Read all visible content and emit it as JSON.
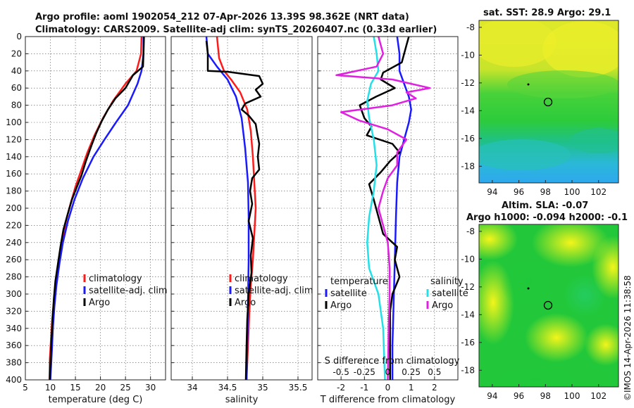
{
  "header": {
    "title1": "Argo profile: aoml 1902054_212 07-Apr-2026 13.39S 98.362E (NRT data)",
    "title2": "Climatology: CARS2009. Satellite-adj clim: synTS_20260407.nc (0.33d earlier)"
  },
  "colors": {
    "climatology": "#ff1a1a",
    "satellite": "#1a1aff",
    "argo": "#000000",
    "sal_sat": "#22e0e8",
    "sal_diff": "#e020e0"
  },
  "chart_data": [
    {
      "id": "temperature",
      "type": "line",
      "xlabel": "temperature (deg C)",
      "ylim": [
        0,
        400
      ],
      "xlim": [
        5,
        33
      ],
      "xticks": [
        5,
        10,
        15,
        20,
        25,
        30
      ],
      "depth_ticks": [
        0,
        20,
        40,
        60,
        80,
        100,
        120,
        140,
        160,
        180,
        200,
        220,
        240,
        260,
        280,
        300,
        320,
        340,
        360,
        380,
        400
      ],
      "legend": [
        "climatology",
        "satellite-adj. clim",
        "Argo"
      ],
      "series": [
        {
          "name": "climatology",
          "color": "#ff1a1a",
          "points": [
            [
              28.2,
              0
            ],
            [
              28.1,
              20
            ],
            [
              27.2,
              40
            ],
            [
              25.0,
              55
            ],
            [
              22.5,
              75
            ],
            [
              20.5,
              95
            ],
            [
              18.8,
              115
            ],
            [
              17.4,
              135
            ],
            [
              16.2,
              155
            ],
            [
              15.0,
              175
            ],
            [
              14.0,
              195
            ],
            [
              13.1,
              215
            ],
            [
              12.4,
              235
            ],
            [
              11.8,
              255
            ],
            [
              11.3,
              275
            ],
            [
              10.9,
              295
            ],
            [
              10.6,
              315
            ],
            [
              10.3,
              335
            ],
            [
              10.1,
              355
            ],
            [
              9.9,
              375
            ],
            [
              9.8,
              400
            ]
          ]
        },
        {
          "name": "satellite-adj. clim",
          "color": "#1a1aff",
          "points": [
            [
              28.6,
              0
            ],
            [
              28.6,
              20
            ],
            [
              28.2,
              40
            ],
            [
              27.4,
              55
            ],
            [
              25.5,
              80
            ],
            [
              23.1,
              100
            ],
            [
              20.8,
              120
            ],
            [
              18.6,
              140
            ],
            [
              16.5,
              165
            ],
            [
              14.8,
              190
            ],
            [
              13.5,
              215
            ],
            [
              12.5,
              240
            ],
            [
              11.8,
              265
            ],
            [
              11.2,
              290
            ],
            [
              10.8,
              315
            ],
            [
              10.5,
              340
            ],
            [
              10.3,
              365
            ],
            [
              10.0,
              400
            ]
          ]
        },
        {
          "name": "Argo",
          "color": "#000000",
          "points": [
            [
              28.7,
              0
            ],
            [
              28.6,
              20
            ],
            [
              28.5,
              35
            ],
            [
              26.5,
              45
            ],
            [
              25.0,
              60
            ],
            [
              23.0,
              72
            ],
            [
              21.5,
              85
            ],
            [
              20.3,
              98
            ],
            [
              19.2,
              112
            ],
            [
              18.2,
              127
            ],
            [
              17.1,
              145
            ],
            [
              16.2,
              162
            ],
            [
              15.3,
              175
            ],
            [
              14.3,
              190
            ],
            [
              13.4,
              208
            ],
            [
              12.6,
              225
            ],
            [
              12.0,
              245
            ],
            [
              11.5,
              265
            ],
            [
              11.0,
              285
            ],
            [
              10.7,
              305
            ],
            [
              10.4,
              330
            ],
            [
              10.2,
              355
            ],
            [
              10.0,
              380
            ],
            [
              9.9,
              400
            ]
          ]
        }
      ]
    },
    {
      "id": "salinity",
      "type": "line",
      "xlabel": "salinity",
      "ylim": [
        0,
        400
      ],
      "xlim": [
        33.7,
        35.7
      ],
      "xticks": [
        34,
        34.5,
        35,
        35.5
      ],
      "legend": [
        "climatology",
        "satellite-adj. clim",
        "Argo"
      ],
      "series": [
        {
          "name": "climatology",
          "color": "#ff1a1a",
          "points": [
            [
              34.35,
              0
            ],
            [
              34.38,
              25
            ],
            [
              34.45,
              40
            ],
            [
              34.55,
              50
            ],
            [
              34.68,
              65
            ],
            [
              34.78,
              85
            ],
            [
              34.83,
              110
            ],
            [
              34.86,
              140
            ],
            [
              34.88,
              170
            ],
            [
              34.9,
              200
            ],
            [
              34.88,
              230
            ],
            [
              34.86,
              260
            ],
            [
              34.83,
              290
            ],
            [
              34.81,
              320
            ],
            [
              34.79,
              360
            ],
            [
              34.77,
              400
            ]
          ]
        },
        {
          "name": "satellite-adj. clim",
          "color": "#1a1aff",
          "points": [
            [
              34.2,
              0
            ],
            [
              34.22,
              20
            ],
            [
              34.35,
              35
            ],
            [
              34.5,
              50
            ],
            [
              34.62,
              70
            ],
            [
              34.7,
              95
            ],
            [
              34.75,
              130
            ],
            [
              34.79,
              170
            ],
            [
              34.8,
              210
            ],
            [
              34.8,
              260
            ],
            [
              34.79,
              310
            ],
            [
              34.78,
              360
            ],
            [
              34.77,
              400
            ]
          ]
        },
        {
          "name": "Argo",
          "color": "#000000",
          "points": [
            [
              34.2,
              5
            ],
            [
              34.22,
              20
            ],
            [
              34.22,
              40
            ],
            [
              34.5,
              41
            ],
            [
              34.95,
              46
            ],
            [
              35.0,
              55
            ],
            [
              34.9,
              62
            ],
            [
              34.97,
              70
            ],
            [
              34.75,
              78
            ],
            [
              34.7,
              85
            ],
            [
              34.8,
              92
            ],
            [
              34.9,
              102
            ],
            [
              34.92,
              112
            ],
            [
              34.95,
              125
            ],
            [
              34.93,
              140
            ],
            [
              34.95,
              155
            ],
            [
              34.85,
              165
            ],
            [
              34.82,
              180
            ],
            [
              34.85,
              195
            ],
            [
              34.8,
              215
            ],
            [
              34.86,
              235
            ],
            [
              34.83,
              255
            ],
            [
              34.84,
              275
            ],
            [
              34.8,
              300
            ],
            [
              34.78,
              330
            ],
            [
              34.77,
              360
            ],
            [
              34.76,
              400
            ]
          ]
        }
      ]
    },
    {
      "id": "difference",
      "type": "line",
      "xlabel": "T difference from climatology",
      "top_label": "S difference from climatology",
      "ylim": [
        0,
        400
      ],
      "xlim": [
        -3,
        3
      ],
      "xticks": [
        -2,
        -1,
        0,
        1,
        2
      ],
      "s_xlim": [
        -0.75,
        0.75
      ],
      "s_xticks": [
        -0.5,
        -0.25,
        0,
        0.25,
        0.5
      ],
      "s_xtick_labels": [
        "-0.5",
        "-0.25",
        "0",
        "0.25",
        "0.5"
      ],
      "legend_title_t": "temperature",
      "legend_title_s": "salinity",
      "legend_t": [
        "satellite",
        "Argo"
      ],
      "legend_s": [
        "satellite",
        "Argo"
      ],
      "series": [
        {
          "name": "temperature satellite",
          "axis": "T",
          "color": "#1a1aff",
          "points": [
            [
              0.4,
              0
            ],
            [
              0.5,
              20
            ],
            [
              0.5,
              40
            ],
            [
              0.7,
              55
            ],
            [
              0.9,
              70
            ],
            [
              1.0,
              85
            ],
            [
              0.9,
              100
            ],
            [
              0.7,
              120
            ],
            [
              0.5,
              140
            ],
            [
              0.4,
              170
            ],
            [
              0.35,
              210
            ],
            [
              0.3,
              260
            ],
            [
              0.25,
              310
            ],
            [
              0.2,
              360
            ],
            [
              0.2,
              400
            ]
          ]
        },
        {
          "name": "temperature Argo",
          "axis": "T",
          "color": "#000000",
          "points": [
            [
              0.9,
              0
            ],
            [
              0.8,
              10
            ],
            [
              0.6,
              30
            ],
            [
              -0.2,
              42
            ],
            [
              -0.3,
              50
            ],
            [
              0.3,
              60
            ],
            [
              -0.5,
              70
            ],
            [
              -1.2,
              80
            ],
            [
              -1.0,
              95
            ],
            [
              -0.7,
              105
            ],
            [
              -0.9,
              115
            ],
            [
              0.2,
              125
            ],
            [
              0.5,
              135
            ],
            [
              0.1,
              145
            ],
            [
              -0.3,
              158
            ],
            [
              -0.8,
              172
            ],
            [
              -0.6,
              190
            ],
            [
              -0.4,
              210
            ],
            [
              -0.2,
              230
            ],
            [
              0.4,
              245
            ],
            [
              0.3,
              260
            ],
            [
              0.5,
              280
            ],
            [
              0.2,
              300
            ],
            [
              0.1,
              320
            ],
            [
              0.1,
              360
            ],
            [
              0.1,
              400
            ]
          ]
        },
        {
          "name": "salinity satellite",
          "axis": "S",
          "color": "#22e0e8",
          "points": [
            [
              -0.15,
              0
            ],
            [
              -0.12,
              20
            ],
            [
              -0.1,
              40
            ],
            [
              -0.18,
              55
            ],
            [
              -0.22,
              75
            ],
            [
              -0.2,
              95
            ],
            [
              -0.15,
              120
            ],
            [
              -0.12,
              150
            ],
            [
              -0.15,
              180
            ],
            [
              -0.2,
              210
            ],
            [
              -0.22,
              240
            ],
            [
              -0.2,
              270
            ],
            [
              -0.1,
              300
            ],
            [
              -0.05,
              340
            ],
            [
              -0.03,
              400
            ]
          ]
        },
        {
          "name": "salinity Argo",
          "axis": "S",
          "color": "#e020e0",
          "points": [
            [
              -0.1,
              0
            ],
            [
              -0.05,
              20
            ],
            [
              -0.12,
              35
            ],
            [
              -0.55,
              45
            ],
            [
              0.05,
              50
            ],
            [
              0.45,
              60
            ],
            [
              0.2,
              65
            ],
            [
              0.3,
              72
            ],
            [
              0.05,
              80
            ],
            [
              -0.5,
              88
            ],
            [
              -0.3,
              98
            ],
            [
              0.0,
              108
            ],
            [
              0.2,
              120
            ],
            [
              0.1,
              135
            ],
            [
              0.1,
              150
            ],
            [
              0.0,
              165
            ],
            [
              -0.05,
              180
            ],
            [
              -0.1,
              200
            ],
            [
              -0.05,
              220
            ],
            [
              0.0,
              240
            ],
            [
              0.02,
              270
            ],
            [
              0.02,
              300
            ],
            [
              0.01,
              340
            ],
            [
              0.0,
              400
            ]
          ]
        }
      ]
    },
    {
      "id": "sst_map",
      "type": "heatmap",
      "title": "sat. SST: 28.9  Argo: 29.1",
      "xlim": [
        93,
        103.5
      ],
      "ylim": [
        -19.2,
        -7.5
      ],
      "xticks": [
        94,
        96,
        98,
        100,
        102
      ],
      "yticks": [
        -8,
        -10,
        -12,
        -14,
        -16,
        -18
      ],
      "marker": {
        "lon": 98.362,
        "lat": -13.39
      }
    },
    {
      "id": "sla_map",
      "type": "heatmap",
      "title1": "Altim. SLA: -0.07",
      "title2": "Argo h1000: -0.094  h2000: -0.1",
      "xlim": [
        93,
        103.5
      ],
      "ylim": [
        -19.2,
        -7.5
      ],
      "xticks": [
        94,
        96,
        98,
        100,
        102
      ],
      "yticks": [
        -8,
        -10,
        -12,
        -14,
        -16,
        -18
      ],
      "marker": {
        "lon": 98.362,
        "lat": -13.39
      }
    }
  ],
  "footer": {
    "credit": "©IMOS 14-Apr-2026 11:38:58"
  }
}
